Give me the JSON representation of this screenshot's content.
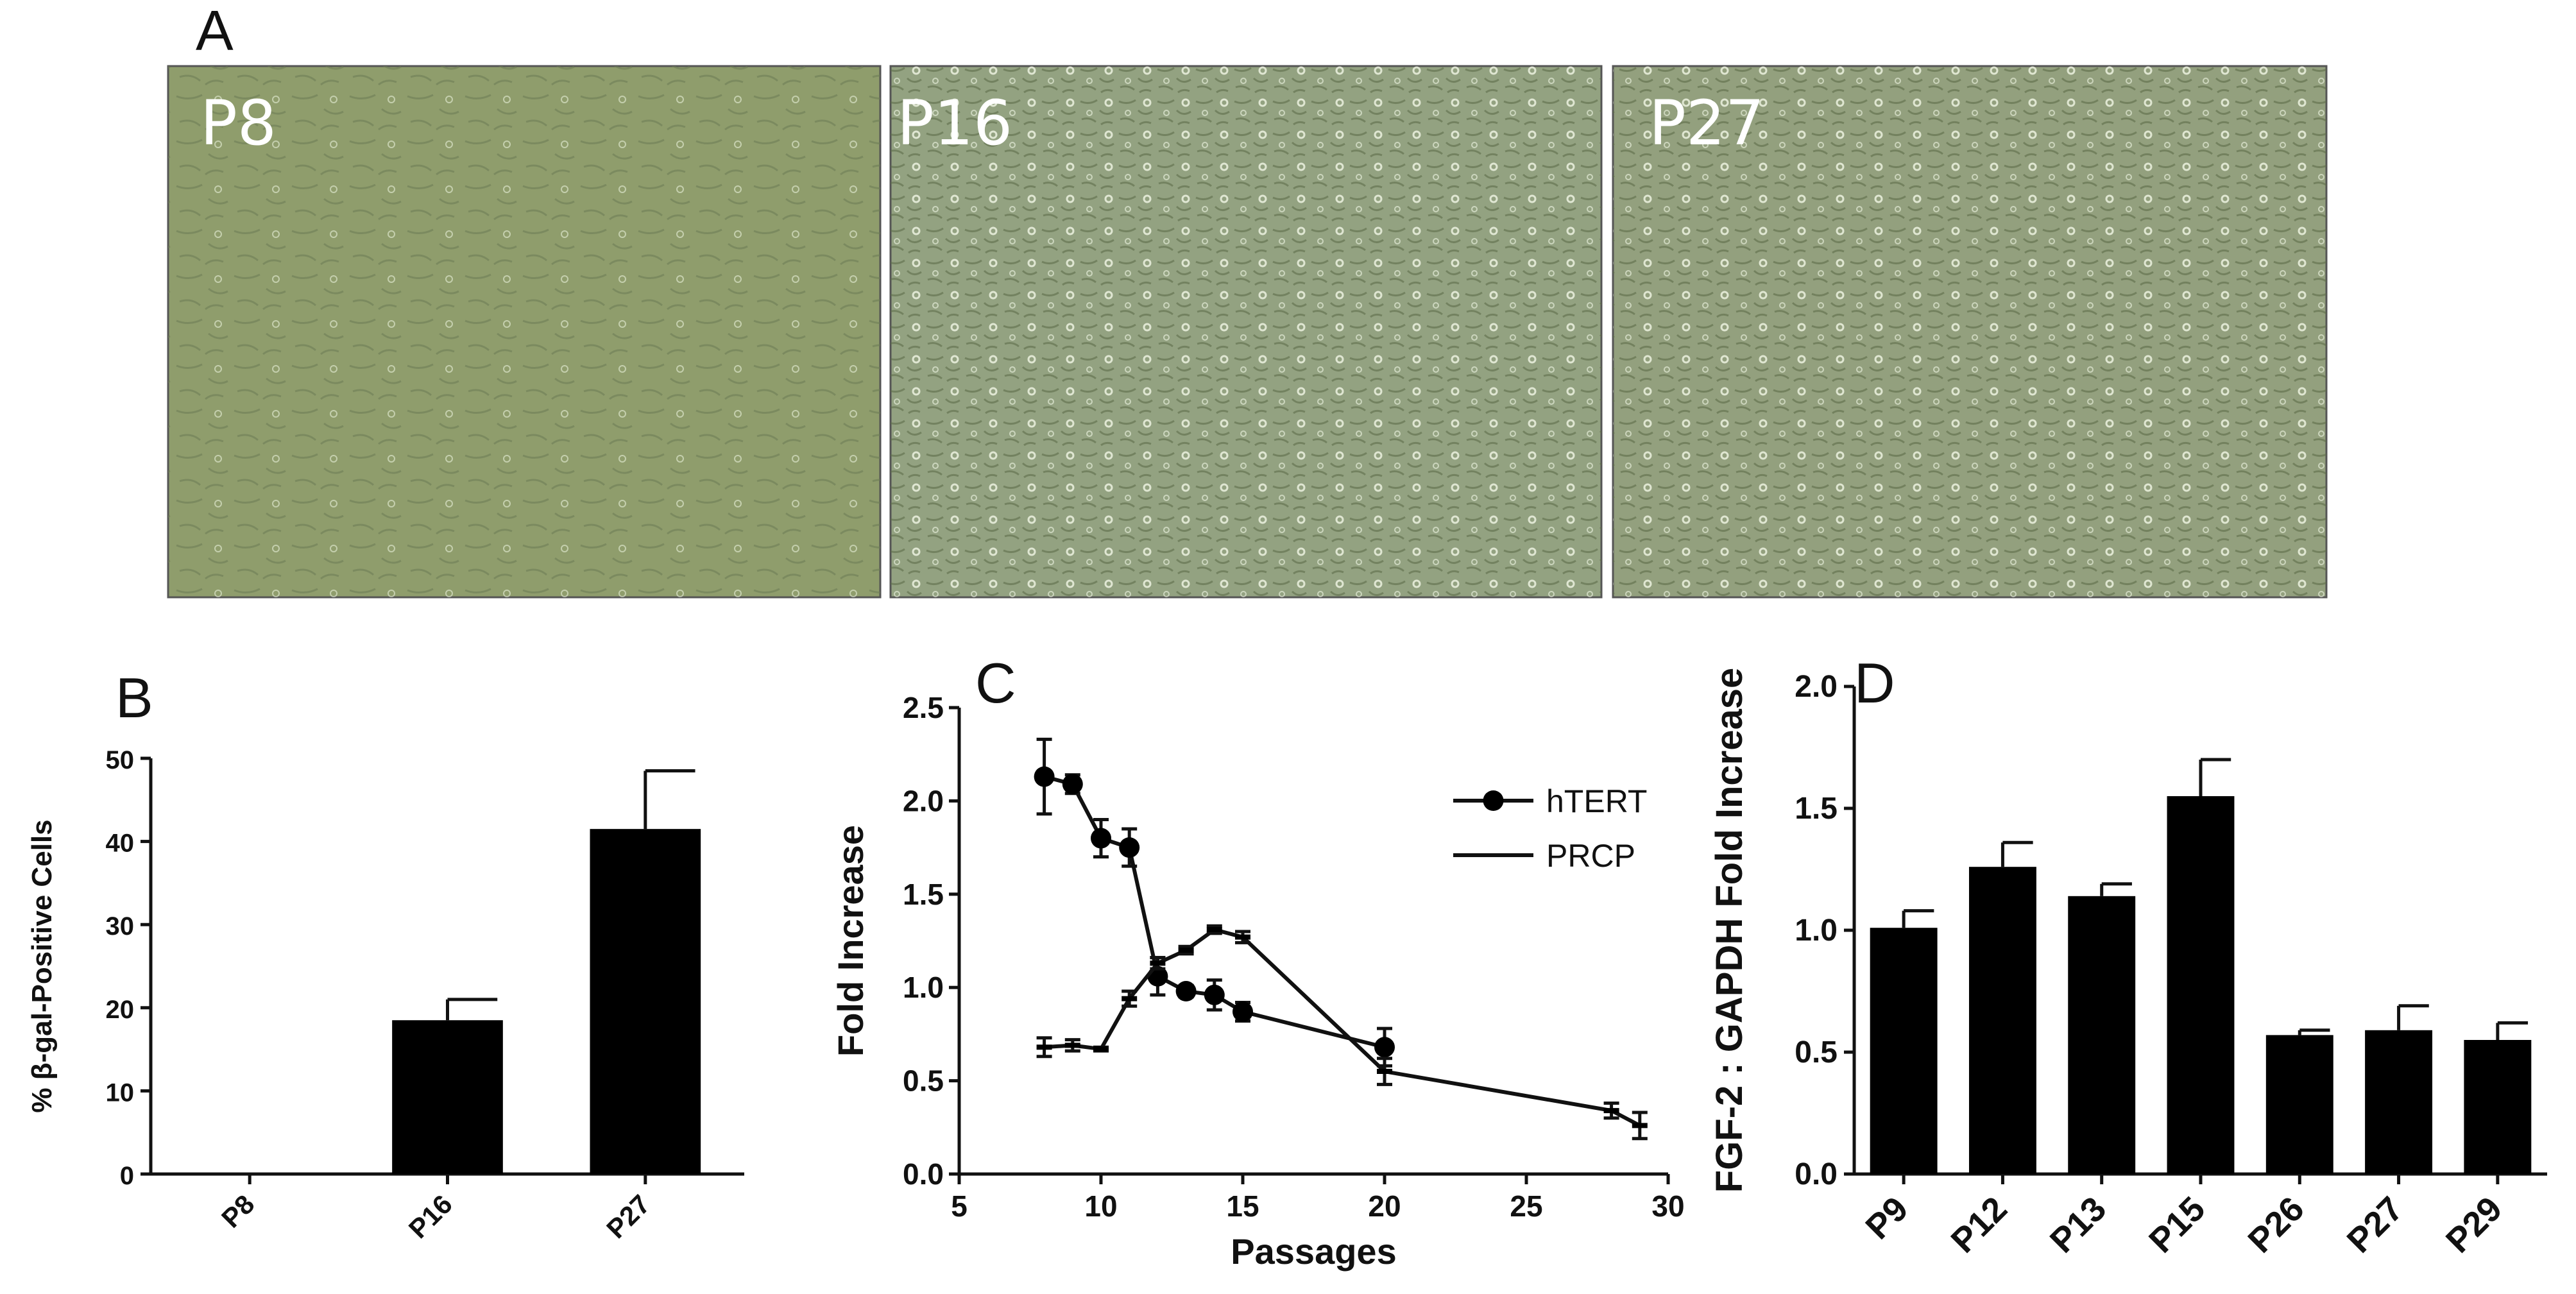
{
  "panel_letters": {
    "a": "A",
    "b": "B",
    "c": "C",
    "d": "D"
  },
  "micrographs": [
    {
      "label": "P8",
      "tint": "#8f9d6c"
    },
    {
      "label": "P16",
      "tint": "#93a281"
    },
    {
      "label": "P27",
      "tint": "#93a07e"
    }
  ],
  "chart_data": [
    {
      "type": "bar",
      "panel": "B",
      "categories": [
        "P8",
        "P16",
        "P27"
      ],
      "values": [
        0,
        18.5,
        41.5
      ],
      "errors": [
        0,
        2.5,
        7
      ],
      "ylabel": "% β-gal-Positive Cells",
      "ylim": [
        0,
        50
      ],
      "yticks": [
        "0",
        "10",
        "20",
        "30",
        "40",
        "50"
      ],
      "grid": false
    },
    {
      "type": "line",
      "panel": "C",
      "xlabel": "Passages",
      "ylabel": "Fold Increase",
      "xlim": [
        5,
        30
      ],
      "ylim": [
        0,
        2.5
      ],
      "xticks": [
        "5",
        "10",
        "15",
        "20",
        "25",
        "30"
      ],
      "yticks": [
        "0.0",
        "0.5",
        "1.0",
        "1.5",
        "2.0",
        "2.5"
      ],
      "legend_position": "upper-right",
      "series": [
        {
          "name": "hTERT",
          "marker": "circle",
          "x": [
            8,
            9,
            10,
            11,
            12,
            13,
            14,
            15,
            20
          ],
          "y": [
            2.13,
            2.09,
            1.8,
            1.75,
            1.06,
            0.98,
            0.96,
            0.87,
            0.68
          ],
          "err": [
            0.2,
            0.05,
            0.1,
            0.1,
            0.1,
            0.03,
            0.08,
            0.05,
            0.1
          ]
        },
        {
          "name": "PRCP",
          "marker": "dash",
          "x": [
            8,
            9,
            10,
            11,
            12,
            13,
            14,
            15,
            20,
            28,
            29
          ],
          "y": [
            0.68,
            0.69,
            0.67,
            0.94,
            1.13,
            1.2,
            1.31,
            1.27,
            0.55,
            0.34,
            0.26
          ],
          "err": [
            0.05,
            0.03,
            0.01,
            0.04,
            0.03,
            0.02,
            0.02,
            0.03,
            0.07,
            0.04,
            0.07
          ]
        }
      ],
      "grid": false
    },
    {
      "type": "bar",
      "panel": "D",
      "categories": [
        "P9",
        "P12",
        "P13",
        "P15",
        "P26",
        "P27",
        "P29"
      ],
      "values": [
        1.01,
        1.26,
        1.14,
        1.55,
        0.57,
        0.59,
        0.55
      ],
      "errors": [
        0.07,
        0.1,
        0.05,
        0.15,
        0.02,
        0.1,
        0.07
      ],
      "ylabel": "FGF-2 : GAPDH Fold Increase",
      "ylim": [
        0,
        2.0
      ],
      "yticks": [
        "0.0",
        "0.5",
        "1.0",
        "1.5",
        "2.0"
      ],
      "grid": false
    }
  ]
}
